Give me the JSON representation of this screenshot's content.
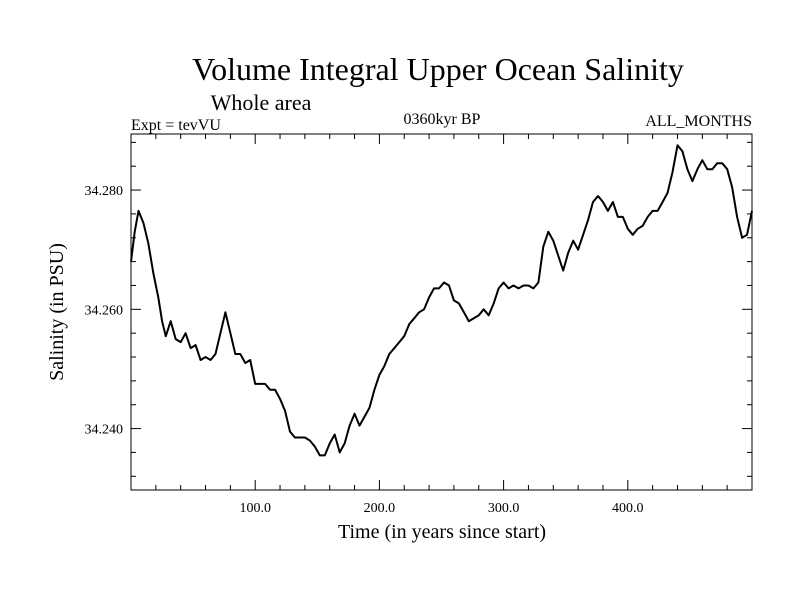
{
  "chart_data": {
    "type": "line",
    "title": "Volume Integral Upper Ocean Salinity",
    "subtitle": "Whole area",
    "left_label": "Expt = tevVU",
    "center_label": "0360kyr BP",
    "right_label": "ALL_MONTHS",
    "xlabel": "Time (in years since start)",
    "ylabel": "Salinity (in PSU)",
    "xlim": [
      0,
      500
    ],
    "ylim": [
      34.2297,
      34.2894
    ],
    "x_ticks": [
      100,
      200,
      300,
      400
    ],
    "x_tick_labels": [
      "100.0",
      "200.0",
      "300.0",
      "400.0"
    ],
    "y_ticks": [
      34.24,
      34.26,
      34.28
    ],
    "y_tick_labels": [
      "34.240",
      "34.260",
      "34.280"
    ],
    "grid": false,
    "series": [
      {
        "color": "#000000",
        "points": [
          [
            0,
            34.268
          ],
          [
            3,
            34.273
          ],
          [
            6,
            34.2765
          ],
          [
            10,
            34.2745
          ],
          [
            14,
            34.271
          ],
          [
            18,
            34.266
          ],
          [
            22,
            34.262
          ],
          [
            25,
            34.258
          ],
          [
            28,
            34.2555
          ],
          [
            32,
            34.258
          ],
          [
            36,
            34.255
          ],
          [
            40,
            34.2545
          ],
          [
            44,
            34.256
          ],
          [
            48,
            34.2535
          ],
          [
            52,
            34.254
          ],
          [
            56,
            34.2515
          ],
          [
            60,
            34.252
          ],
          [
            64,
            34.2515
          ],
          [
            68,
            34.2525
          ],
          [
            72,
            34.256
          ],
          [
            76,
            34.2595
          ],
          [
            80,
            34.256
          ],
          [
            84,
            34.2525
          ],
          [
            88,
            34.2525
          ],
          [
            92,
            34.251
          ],
          [
            96,
            34.2515
          ],
          [
            100,
            34.2475
          ],
          [
            104,
            34.2475
          ],
          [
            108,
            34.2475
          ],
          [
            112,
            34.2465
          ],
          [
            116,
            34.2465
          ],
          [
            120,
            34.245
          ],
          [
            124,
            34.243
          ],
          [
            128,
            34.2395
          ],
          [
            132,
            34.2385
          ],
          [
            136,
            34.2385
          ],
          [
            140,
            34.2385
          ],
          [
            144,
            34.238
          ],
          [
            148,
            34.237
          ],
          [
            152,
            34.2355
          ],
          [
            156,
            34.2355
          ],
          [
            160,
            34.2375
          ],
          [
            164,
            34.239
          ],
          [
            168,
            34.236
          ],
          [
            172,
            34.2375
          ],
          [
            176,
            34.2405
          ],
          [
            180,
            34.2425
          ],
          [
            184,
            34.2405
          ],
          [
            188,
            34.242
          ],
          [
            192,
            34.2435
          ],
          [
            196,
            34.2465
          ],
          [
            200,
            34.249
          ],
          [
            204,
            34.2505
          ],
          [
            208,
            34.2525
          ],
          [
            212,
            34.2535
          ],
          [
            216,
            34.2545
          ],
          [
            220,
            34.2555
          ],
          [
            224,
            34.2575
          ],
          [
            228,
            34.2585
          ],
          [
            232,
            34.2595
          ],
          [
            236,
            34.26
          ],
          [
            240,
            34.262
          ],
          [
            244,
            34.2635
          ],
          [
            248,
            34.2635
          ],
          [
            252,
            34.2645
          ],
          [
            256,
            34.264
          ],
          [
            260,
            34.2615
          ],
          [
            264,
            34.261
          ],
          [
            268,
            34.2595
          ],
          [
            272,
            34.258
          ],
          [
            276,
            34.2585
          ],
          [
            280,
            34.259
          ],
          [
            284,
            34.26
          ],
          [
            288,
            34.259
          ],
          [
            292,
            34.261
          ],
          [
            296,
            34.2635
          ],
          [
            300,
            34.2645
          ],
          [
            304,
            34.2635
          ],
          [
            308,
            34.264
          ],
          [
            312,
            34.2635
          ],
          [
            316,
            34.264
          ],
          [
            320,
            34.264
          ],
          [
            324,
            34.2635
          ],
          [
            328,
            34.2645
          ],
          [
            332,
            34.2705
          ],
          [
            336,
            34.273
          ],
          [
            340,
            34.2715
          ],
          [
            344,
            34.269
          ],
          [
            348,
            34.2665
          ],
          [
            352,
            34.2695
          ],
          [
            356,
            34.2715
          ],
          [
            360,
            34.27
          ],
          [
            364,
            34.2725
          ],
          [
            368,
            34.275
          ],
          [
            372,
            34.278
          ],
          [
            376,
            34.279
          ],
          [
            380,
            34.278
          ],
          [
            384,
            34.2765
          ],
          [
            388,
            34.278
          ],
          [
            392,
            34.2755
          ],
          [
            396,
            34.2755
          ],
          [
            400,
            34.2735
          ],
          [
            404,
            34.2725
          ],
          [
            408,
            34.2735
          ],
          [
            412,
            34.274
          ],
          [
            416,
            34.2755
          ],
          [
            420,
            34.2765
          ],
          [
            424,
            34.2765
          ],
          [
            428,
            34.278
          ],
          [
            432,
            34.2795
          ],
          [
            436,
            34.283
          ],
          [
            440,
            34.2875
          ],
          [
            444,
            34.2865
          ],
          [
            448,
            34.2835
          ],
          [
            452,
            34.2815
          ],
          [
            456,
            34.2835
          ],
          [
            460,
            34.285
          ],
          [
            464,
            34.2835
          ],
          [
            468,
            34.2835
          ],
          [
            472,
            34.2845
          ],
          [
            476,
            34.2845
          ],
          [
            480,
            34.2835
          ],
          [
            484,
            34.2805
          ],
          [
            488,
            34.2755
          ],
          [
            492,
            34.272
          ],
          [
            496,
            34.2725
          ],
          [
            500,
            34.2765
          ]
        ]
      }
    ]
  }
}
